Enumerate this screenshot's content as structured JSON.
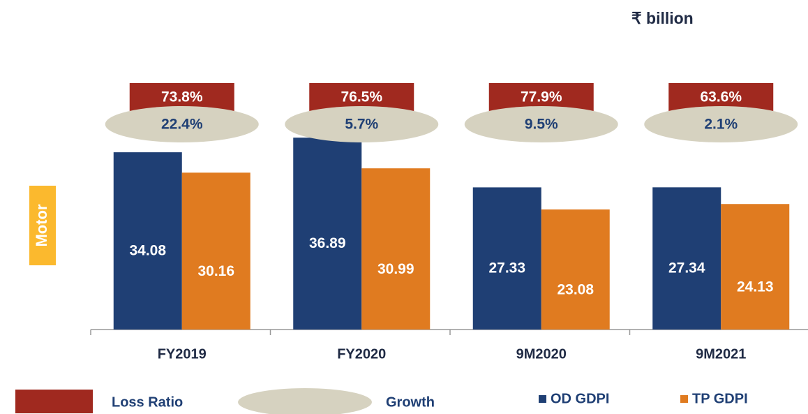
{
  "chart_data": {
    "type": "bar",
    "unit_label": "₹ billion",
    "side_label": "Motor",
    "categories": [
      "FY2019",
      "FY2020",
      "9M2020",
      "9M2021"
    ],
    "series": [
      {
        "name": "OD GDPI",
        "color": "#1f3f74",
        "values": [
          34.08,
          36.89,
          27.33,
          27.34
        ]
      },
      {
        "name": "TP GDPI",
        "color": "#e07b20",
        "values": [
          30.16,
          30.99,
          23.08,
          24.13
        ]
      }
    ],
    "loss_ratio": {
      "name": "Loss Ratio",
      "color": "#a0291f",
      "values": [
        73.8,
        76.5,
        77.9,
        63.6
      ],
      "value_labels": [
        "73.8%",
        "76.5%",
        "77.9%",
        "63.6%"
      ]
    },
    "growth": {
      "name": "Growth",
      "color": "#d6d2c0",
      "values": [
        22.4,
        5.7,
        9.5,
        2.1
      ],
      "value_labels": [
        "22.4%",
        "5.7%",
        "9.5%",
        "2.1%"
      ]
    },
    "ylim": [
      0,
      40
    ]
  }
}
